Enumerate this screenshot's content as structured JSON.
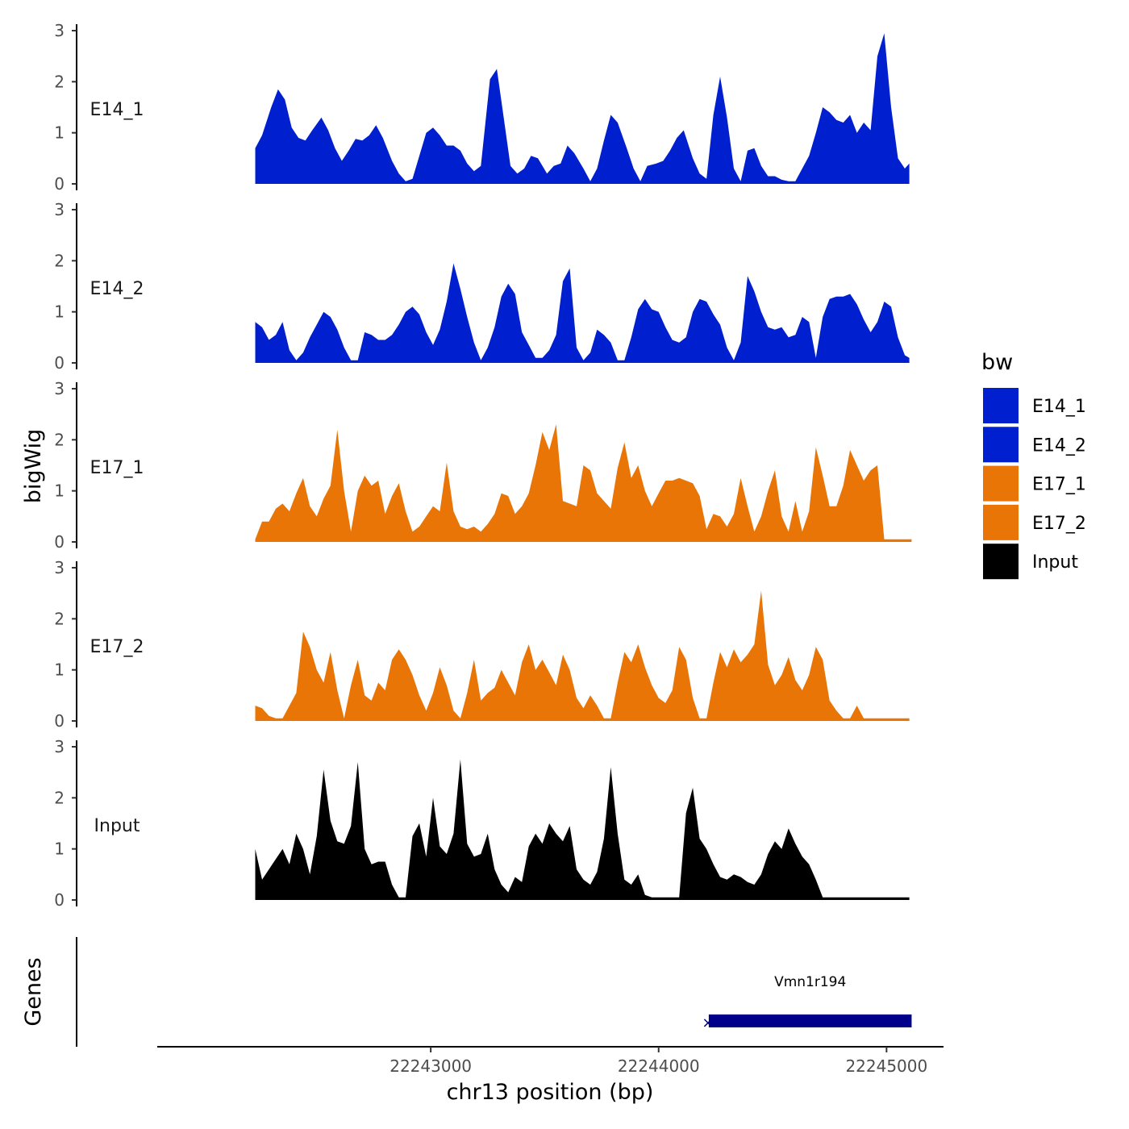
{
  "chart_data": {
    "type": "area",
    "y_axis_title": "bigWig",
    "genes_axis_title": "Genes",
    "x_axis_title": "chr13 position (bp)",
    "x_ticks": [
      {
        "value": 22243000,
        "label": "22243000"
      },
      {
        "value": 22244000,
        "label": "22244000"
      },
      {
        "value": 22245000,
        "label": "22245000"
      }
    ],
    "x_range": [
      22241800,
      22245250
    ],
    "y_range": [
      0,
      3
    ],
    "y_ticks": [
      {
        "value": 0,
        "label": "0"
      },
      {
        "value": 1,
        "label": "1"
      },
      {
        "value": 2,
        "label": "2"
      },
      {
        "value": 3,
        "label": "3"
      }
    ],
    "legend": {
      "title": "bw",
      "entries": [
        {
          "label": "E14_1",
          "color": "#0020D0"
        },
        {
          "label": "E14_2",
          "color": "#0020D0"
        },
        {
          "label": "E17_1",
          "color": "#E87506"
        },
        {
          "label": "E17_2",
          "color": "#E87506"
        },
        {
          "label": "Input",
          "color": "#000000"
        }
      ]
    },
    "series": [
      {
        "name": "E14_1",
        "color": "#0020D0",
        "x": [
          22242230,
          22242260,
          22242300,
          22242330,
          22242360,
          22242390,
          22242420,
          22242450,
          22242480,
          22242520,
          22242550,
          22242580,
          22242610,
          22242640,
          22242670,
          22242700,
          22242730,
          22242760,
          22242790,
          22242830,
          22242860,
          22242890,
          22242920,
          22242950,
          22242980,
          22243010,
          22243040,
          22243070,
          22243100,
          22243130,
          22243160,
          22243190,
          22243220,
          22243260,
          22243290,
          22243320,
          22243350,
          22243380,
          22243410,
          22243440,
          22243470,
          22243510,
          22243540,
          22243570,
          22243600,
          22243630,
          22243670,
          22243700,
          22243730,
          22243760,
          22243790,
          22243820,
          22243860,
          22243890,
          22243920,
          22243950,
          22243990,
          22244020,
          22244050,
          22244080,
          22244110,
          22244150,
          22244180,
          22244210,
          22244240,
          22244270,
          22244300,
          22244330,
          22244360,
          22244390,
          22244420,
          22244450,
          22244480,
          22244510,
          22244540,
          22244570,
          22244600,
          22244630,
          22244660,
          22244690,
          22244720,
          22244750,
          22244780,
          22244810,
          22244840,
          22244870,
          22244900,
          22244930,
          22244960,
          22244990,
          22245020,
          22245050,
          22245080,
          22245100
        ],
        "y": [
          0.7,
          0.95,
          1.5,
          1.85,
          1.65,
          1.1,
          0.9,
          0.85,
          1.05,
          1.3,
          1.05,
          0.7,
          0.45,
          0.65,
          0.88,
          0.85,
          0.95,
          1.15,
          0.9,
          0.45,
          0.2,
          0.05,
          0.1,
          0.55,
          1.0,
          1.1,
          0.95,
          0.75,
          0.75,
          0.65,
          0.4,
          0.25,
          0.35,
          2.05,
          2.25,
          1.3,
          0.35,
          0.2,
          0.3,
          0.55,
          0.5,
          0.2,
          0.35,
          0.4,
          0.75,
          0.6,
          0.3,
          0.05,
          0.3,
          0.85,
          1.35,
          1.2,
          0.7,
          0.3,
          0.05,
          0.35,
          0.4,
          0.45,
          0.65,
          0.9,
          1.05,
          0.5,
          0.2,
          0.1,
          1.35,
          2.1,
          1.3,
          0.3,
          0.05,
          0.65,
          0.7,
          0.35,
          0.15,
          0.15,
          0.08,
          0.05,
          0.05,
          0.3,
          0.55,
          1.0,
          1.5,
          1.4,
          1.25,
          1.2,
          1.35,
          1.0,
          1.2,
          1.05,
          2.5,
          2.95,
          1.5,
          0.5,
          0.3,
          0.4
        ]
      },
      {
        "name": "E14_2",
        "color": "#0020D0",
        "x": [
          22242230,
          22242260,
          22242290,
          22242320,
          22242350,
          22242380,
          22242410,
          22242440,
          22242470,
          22242500,
          22242530,
          22242560,
          22242590,
          22242620,
          22242650,
          22242680,
          22242710,
          22242740,
          22242770,
          22242800,
          22242830,
          22242860,
          22242890,
          22242920,
          22242950,
          22242980,
          22243010,
          22243040,
          22243070,
          22243100,
          22243130,
          22243160,
          22243190,
          22243220,
          22243250,
          22243280,
          22243310,
          22243340,
          22243370,
          22243400,
          22243430,
          22243460,
          22243490,
          22243520,
          22243550,
          22243580,
          22243610,
          22243640,
          22243670,
          22243700,
          22243730,
          22243760,
          22243790,
          22243820,
          22243850,
          22243880,
          22243910,
          22243940,
          22243970,
          22244000,
          22244030,
          22244060,
          22244090,
          22244120,
          22244150,
          22244180,
          22244210,
          22244240,
          22244270,
          22244300,
          22244330,
          22244360,
          22244390,
          22244420,
          22244450,
          22244480,
          22244510,
          22244540,
          22244570,
          22244600,
          22244630,
          22244660,
          22244690,
          22244720,
          22244750,
          22244780,
          22244810,
          22244840,
          22244870,
          22244900,
          22244930,
          22244960,
          22244990,
          22245020,
          22245050,
          22245080,
          22245100
        ],
        "y": [
          0.8,
          0.7,
          0.45,
          0.55,
          0.8,
          0.25,
          0.05,
          0.2,
          0.5,
          0.75,
          1.0,
          0.9,
          0.65,
          0.3,
          0.05,
          0.05,
          0.6,
          0.55,
          0.45,
          0.45,
          0.55,
          0.75,
          1.0,
          1.1,
          0.95,
          0.6,
          0.35,
          0.65,
          1.2,
          1.95,
          1.45,
          0.9,
          0.4,
          0.05,
          0.3,
          0.7,
          1.3,
          1.55,
          1.35,
          0.6,
          0.35,
          0.1,
          0.1,
          0.25,
          0.55,
          1.6,
          1.85,
          0.3,
          0.05,
          0.2,
          0.65,
          0.55,
          0.4,
          0.05,
          0.05,
          0.5,
          1.05,
          1.25,
          1.05,
          1.0,
          0.7,
          0.45,
          0.4,
          0.5,
          1.0,
          1.25,
          1.2,
          0.95,
          0.75,
          0.3,
          0.05,
          0.4,
          1.7,
          1.4,
          1.0,
          0.7,
          0.65,
          0.7,
          0.5,
          0.55,
          0.9,
          0.8,
          0.1,
          0.9,
          1.25,
          1.3,
          1.3,
          1.35,
          1.15,
          0.85,
          0.6,
          0.8,
          1.2,
          1.1,
          0.5,
          0.15,
          0.1
        ]
      },
      {
        "name": "E17_1",
        "color": "#E87506",
        "x": [
          22242230,
          22242260,
          22242290,
          22242320,
          22242350,
          22242380,
          22242410,
          22242440,
          22242470,
          22242500,
          22242530,
          22242560,
          22242590,
          22242620,
          22242650,
          22242680,
          22242710,
          22242740,
          22242770,
          22242800,
          22242830,
          22242860,
          22242890,
          22242920,
          22242950,
          22242980,
          22243010,
          22243040,
          22243070,
          22243100,
          22243130,
          22243160,
          22243190,
          22243220,
          22243250,
          22243280,
          22243310,
          22243340,
          22243370,
          22243400,
          22243430,
          22243460,
          22243490,
          22243520,
          22243550,
          22243580,
          22243610,
          22243640,
          22243670,
          22243700,
          22243730,
          22243760,
          22243790,
          22243820,
          22243850,
          22243880,
          22243910,
          22243940,
          22243970,
          22244000,
          22244030,
          22244060,
          22244090,
          22244120,
          22244150,
          22244180,
          22244210,
          22244240,
          22244270,
          22244300,
          22244330,
          22244360,
          22244390,
          22244420,
          22244450,
          22244480,
          22244510,
          22244540,
          22244570,
          22244600,
          22244630,
          22244660,
          22244690,
          22244720,
          22244750,
          22244780,
          22244810,
          22244840,
          22244870,
          22244900,
          22244930,
          22244960,
          22244990,
          22245020,
          22245050,
          22245080,
          22245110
        ],
        "y": [
          0.05,
          0.4,
          0.4,
          0.65,
          0.75,
          0.6,
          0.95,
          1.25,
          0.7,
          0.5,
          0.85,
          1.1,
          2.2,
          1.0,
          0.2,
          1.0,
          1.3,
          1.1,
          1.2,
          0.55,
          0.9,
          1.15,
          0.6,
          0.2,
          0.3,
          0.5,
          0.7,
          0.6,
          1.55,
          0.6,
          0.3,
          0.25,
          0.3,
          0.2,
          0.35,
          0.55,
          0.95,
          0.9,
          0.55,
          0.7,
          0.95,
          1.5,
          2.15,
          1.8,
          2.3,
          0.8,
          0.75,
          0.7,
          1.5,
          1.4,
          0.95,
          0.8,
          0.65,
          1.45,
          1.95,
          1.25,
          1.5,
          1.0,
          0.7,
          0.95,
          1.2,
          1.2,
          1.25,
          1.2,
          1.15,
          0.9,
          0.25,
          0.55,
          0.5,
          0.3,
          0.55,
          1.25,
          0.7,
          0.2,
          0.5,
          1.0,
          1.4,
          0.5,
          0.2,
          0.8,
          0.2,
          0.6,
          1.85,
          1.3,
          0.7,
          0.7,
          1.1,
          1.8,
          1.5,
          1.2,
          1.4,
          1.5,
          0.05,
          0.05,
          0.05,
          0.05,
          0.05
        ]
      },
      {
        "name": "E17_2",
        "color": "#E87506",
        "x": [
          22242230,
          22242260,
          22242290,
          22242320,
          22242350,
          22242380,
          22242410,
          22242440,
          22242470,
          22242500,
          22242530,
          22242560,
          22242590,
          22242620,
          22242650,
          22242680,
          22242710,
          22242740,
          22242770,
          22242800,
          22242830,
          22242860,
          22242890,
          22242920,
          22242950,
          22242980,
          22243010,
          22243040,
          22243070,
          22243100,
          22243130,
          22243160,
          22243190,
          22243220,
          22243250,
          22243280,
          22243310,
          22243340,
          22243370,
          22243400,
          22243430,
          22243460,
          22243490,
          22243520,
          22243550,
          22243580,
          22243610,
          22243640,
          22243670,
          22243700,
          22243730,
          22243760,
          22243790,
          22243820,
          22243850,
          22243880,
          22243910,
          22243940,
          22243970,
          22244000,
          22244030,
          22244060,
          22244090,
          22244120,
          22244150,
          22244180,
          22244210,
          22244240,
          22244270,
          22244300,
          22244330,
          22244360,
          22244390,
          22244420,
          22244450,
          22244480,
          22244510,
          22244540,
          22244570,
          22244600,
          22244630,
          22244660,
          22244690,
          22244720,
          22244750,
          22244780,
          22244810,
          22244840,
          22244870,
          22244900,
          22244930,
          22244960,
          22244990,
          22245020,
          22245050,
          22245080,
          22245100
        ],
        "y": [
          0.3,
          0.25,
          0.1,
          0.05,
          0.05,
          0.3,
          0.55,
          1.75,
          1.45,
          1.0,
          0.75,
          1.35,
          0.6,
          0.05,
          0.7,
          1.2,
          0.5,
          0.4,
          0.75,
          0.6,
          1.2,
          1.4,
          1.2,
          0.9,
          0.5,
          0.2,
          0.55,
          1.05,
          0.7,
          0.2,
          0.05,
          0.55,
          1.2,
          0.4,
          0.55,
          0.65,
          1.0,
          0.75,
          0.5,
          1.15,
          1.5,
          1.0,
          1.2,
          0.95,
          0.7,
          1.3,
          1.0,
          0.45,
          0.25,
          0.5,
          0.3,
          0.05,
          0.05,
          0.75,
          1.35,
          1.15,
          1.5,
          1.05,
          0.7,
          0.45,
          0.35,
          0.6,
          1.45,
          1.2,
          0.45,
          0.05,
          0.05,
          0.75,
          1.35,
          1.05,
          1.4,
          1.15,
          1.3,
          1.5,
          2.55,
          1.1,
          0.7,
          0.9,
          1.25,
          0.8,
          0.6,
          0.9,
          1.45,
          1.2,
          0.4,
          0.2,
          0.05,
          0.05,
          0.3,
          0.05,
          0.05,
          0.05,
          0.05,
          0.05,
          0.05,
          0.05,
          0.05
        ]
      },
      {
        "name": "Input",
        "color": "#000000",
        "x": [
          22242230,
          22242260,
          22242290,
          22242320,
          22242350,
          22242380,
          22242410,
          22242440,
          22242470,
          22242500,
          22242530,
          22242560,
          22242590,
          22242620,
          22242650,
          22242680,
          22242710,
          22242740,
          22242770,
          22242800,
          22242830,
          22242860,
          22242890,
          22242920,
          22242950,
          22242980,
          22243010,
          22243040,
          22243070,
          22243100,
          22243130,
          22243160,
          22243190,
          22243220,
          22243250,
          22243280,
          22243310,
          22243340,
          22243370,
          22243400,
          22243430,
          22243460,
          22243490,
          22243520,
          22243550,
          22243580,
          22243610,
          22243640,
          22243670,
          22243700,
          22243730,
          22243760,
          22243790,
          22243820,
          22243850,
          22243880,
          22243910,
          22243940,
          22243970,
          22244000,
          22244030,
          22244060,
          22244090,
          22244120,
          22244150,
          22244180,
          22244210,
          22244240,
          22244270,
          22244300,
          22244330,
          22244360,
          22244390,
          22244420,
          22244450,
          22244480,
          22244510,
          22244540,
          22244570,
          22244600,
          22244630,
          22244660,
          22244690,
          22244720,
          22244750,
          22244780,
          22244810,
          22244840,
          22244870,
          22244900,
          22244930,
          22244960,
          22244990,
          22245020,
          22245050,
          22245080,
          22245100
        ],
        "y": [
          1.0,
          0.4,
          0.6,
          0.8,
          1.0,
          0.7,
          1.3,
          1.0,
          0.5,
          1.25,
          2.55,
          1.55,
          1.15,
          1.1,
          1.45,
          2.7,
          1.0,
          0.7,
          0.75,
          0.75,
          0.3,
          0.05,
          0.05,
          1.25,
          1.5,
          0.85,
          2.0,
          1.05,
          0.9,
          1.3,
          2.75,
          1.1,
          0.85,
          0.9,
          1.3,
          0.6,
          0.3,
          0.15,
          0.45,
          0.35,
          1.05,
          1.3,
          1.1,
          1.5,
          1.3,
          1.15,
          1.45,
          0.6,
          0.4,
          0.3,
          0.55,
          1.2,
          2.6,
          1.3,
          0.4,
          0.3,
          0.5,
          0.1,
          0.05,
          0.05,
          0.05,
          0.05,
          0.05,
          1.7,
          2.2,
          1.2,
          1.0,
          0.7,
          0.45,
          0.4,
          0.5,
          0.45,
          0.35,
          0.3,
          0.5,
          0.9,
          1.15,
          1.0,
          1.4,
          1.1,
          0.85,
          0.7,
          0.4,
          0.05,
          0.05,
          0.05,
          0.05,
          0.05,
          0.05,
          0.05,
          0.05,
          0.05,
          0.05,
          0.05,
          0.05,
          0.05,
          0.05
        ]
      }
    ],
    "genes": [
      {
        "name": "Vmn1r194",
        "start": 22244220,
        "end": 22245110,
        "color": "#00008B",
        "strand_marker": "×"
      }
    ]
  }
}
